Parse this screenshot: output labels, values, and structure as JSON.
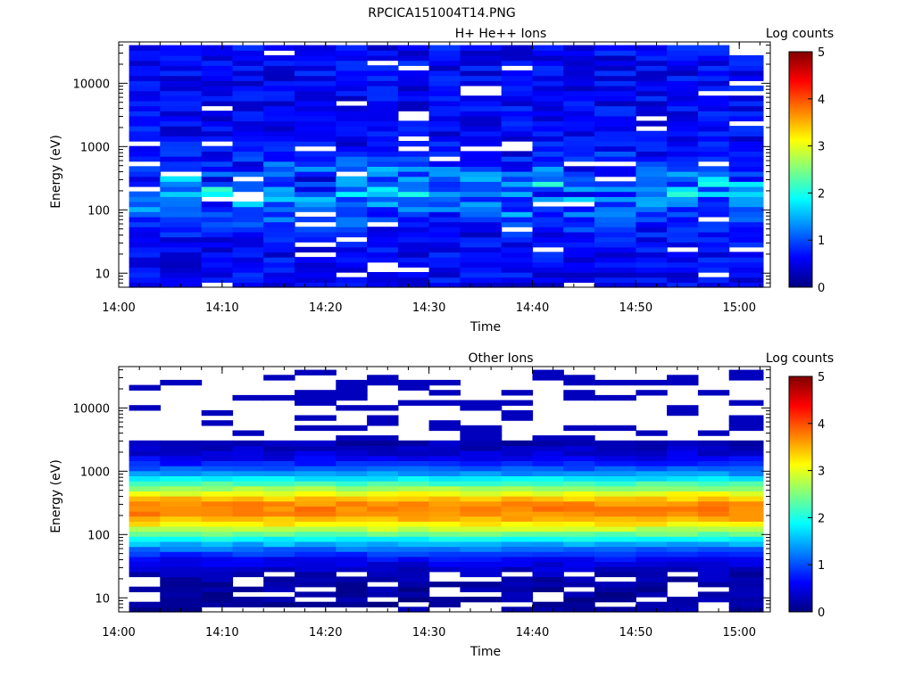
{
  "figure_title": "RPCICA151004T14.PNG",
  "chart_data": [
    {
      "type": "heatmap",
      "title": "H+ He++ Ions",
      "xlabel": "Time",
      "ylabel": "Energy (eV)",
      "x_ticks": [
        "14:00",
        "14:10",
        "14:20",
        "14:30",
        "14:40",
        "14:50",
        "15:00"
      ],
      "xlim": [
        "14:00",
        "15:03"
      ],
      "ylim": [
        6,
        45000
      ],
      "y_scale": "log",
      "y_ticks": [
        "10",
        "100",
        "1000",
        "10000"
      ],
      "colorbar": {
        "label": "Log counts",
        "range": [
          0,
          5
        ],
        "ticks": [
          "0",
          "1",
          "2",
          "3",
          "4",
          "5"
        ]
      },
      "colormap": [
        "#000080",
        "#0000ff",
        "#00ffff",
        "#ffff00",
        "#ff0000",
        "#800000"
      ],
      "time_bins_start": [
        "14:01",
        "14:04",
        "14:08",
        "14:11",
        "14:14",
        "14:17",
        "14:21",
        "14:24",
        "14:27",
        "14:30",
        "14:33",
        "14:37",
        "14:40",
        "14:43",
        "14:46",
        "14:50",
        "14:53",
        "14:56",
        "14:59"
      ],
      "profile": "background",
      "energy_range": [
        6,
        40000
      ]
    },
    {
      "type": "heatmap",
      "title": "Other Ions",
      "xlabel": "Time",
      "ylabel": "Energy (eV)",
      "x_ticks": [
        "14:00",
        "14:10",
        "14:20",
        "14:30",
        "14:40",
        "14:50",
        "15:00"
      ],
      "xlim": [
        "14:00",
        "15:03"
      ],
      "ylim": [
        6,
        45000
      ],
      "y_scale": "log",
      "y_ticks": [
        "10",
        "100",
        "1000",
        "10000"
      ],
      "colorbar": {
        "label": "Log counts",
        "range": [
          0,
          5
        ],
        "ticks": [
          "0",
          "1",
          "2",
          "3",
          "4",
          "5"
        ]
      },
      "colormap": [
        "#000080",
        "#0000ff",
        "#00ffff",
        "#ffff00",
        "#ff0000",
        "#800000"
      ],
      "time_bins_start": [
        "14:01",
        "14:04",
        "14:08",
        "14:11",
        "14:14",
        "14:17",
        "14:21",
        "14:24",
        "14:27",
        "14:30",
        "14:33",
        "14:37",
        "14:40",
        "14:43",
        "14:46",
        "14:50",
        "14:53",
        "14:56",
        "14:59"
      ],
      "profile": "peaked",
      "peak_energy_eV": 250,
      "peak_log_counts": 3.6,
      "energy_range": [
        6,
        40000
      ]
    }
  ]
}
